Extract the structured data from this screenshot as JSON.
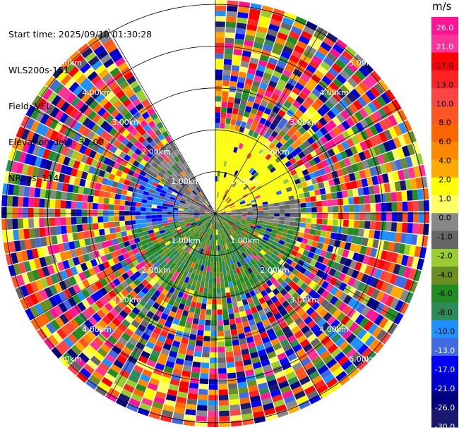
{
  "info": {
    "start_time": "Start time: 2025/09/10 01:30:28",
    "site": "WLS200s-181",
    "field": "Field: VEL",
    "elevation": "Elevation(deg): 35.00",
    "nrays": "NRays: 114"
  },
  "ppi": {
    "range_rings_km": [
      "1.00km",
      "2.00km",
      "3.00km",
      "4.00km",
      "5.00km"
    ],
    "max_range_km": 5.0,
    "gap_azimuth_deg": [
      330,
      360
    ]
  },
  "colorbar": {
    "unit": "m/s",
    "tick_labels": [
      "26.0",
      "21.0",
      "17.0",
      "13.0",
      "10.0",
      "8.0",
      "6.0",
      "4.0",
      "2.0",
      "1.0",
      "0.0",
      "-1.0",
      "-2.0",
      "-4.0",
      "-6.0",
      "-8.0",
      "-10.0",
      "-13.0",
      "-17.0",
      "-21.0",
      "-26.0",
      "-30.0"
    ],
    "colors": [
      "#ff1493",
      "#ff3399",
      "#ff0000",
      "#ff2222",
      "#ff4444",
      "#ff5522",
      "#ff6600",
      "#ff8800",
      "#ffaa00",
      "#ffff00",
      "#ffff66",
      "#888888",
      "#666666",
      "#9acd32",
      "#6b8e23",
      "#228b22",
      "#2e8b57",
      "#1e90ff",
      "#4169e1",
      "#0000ff",
      "#0000cd",
      "#000080",
      "#191970"
    ]
  }
}
